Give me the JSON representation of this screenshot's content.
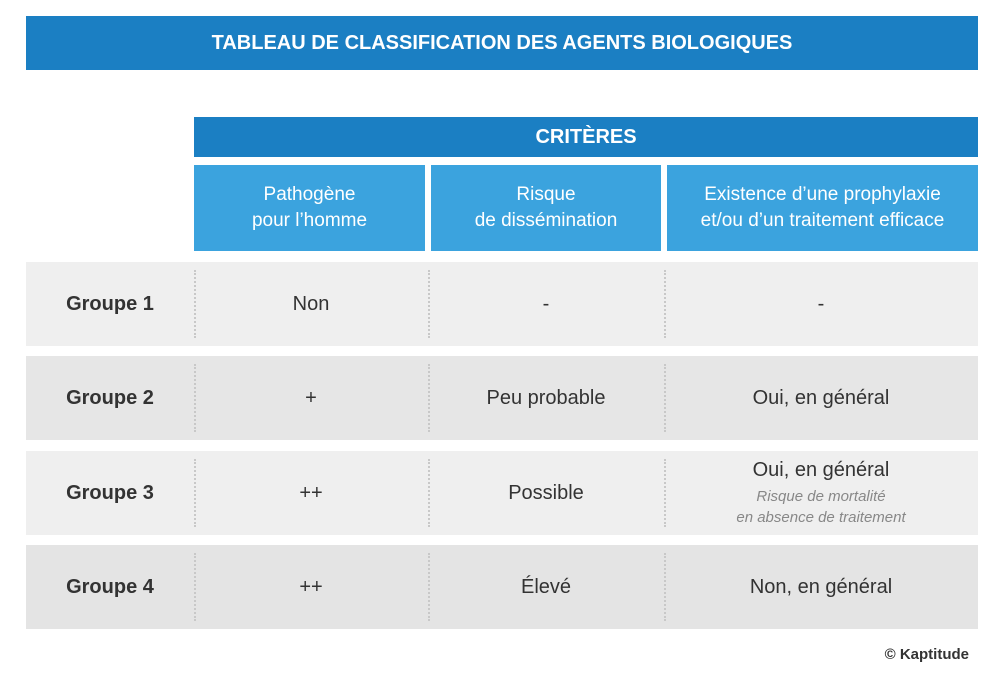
{
  "title": "TABLEAU DE CLASSIFICATION DES AGENTS BIOLOGIQUES",
  "criteria": {
    "title": "CRITÈRES",
    "columns": [
      [
        "Pathogène",
        "pour l’homme"
      ],
      [
        "Risque",
        "de dissémination"
      ],
      [
        "Existence d’une prophylaxie",
        "et/ou d’un traitement efficace"
      ]
    ]
  },
  "rows": [
    {
      "label": "Groupe 1",
      "cells": [
        "Non",
        "-",
        "-"
      ]
    },
    {
      "label": "Groupe 2",
      "cells": [
        "+",
        "Peu probable",
        "Oui, en général"
      ]
    },
    {
      "label": "Groupe 3",
      "cells": [
        "++",
        "Possible",
        "Oui, en général"
      ],
      "note": [
        "Risque de mortalité",
        "en absence de traitement"
      ]
    },
    {
      "label": "Groupe 4",
      "cells": [
        "++",
        "Élevé",
        "Non, en général"
      ]
    }
  ],
  "credit": "© Kaptitude"
}
